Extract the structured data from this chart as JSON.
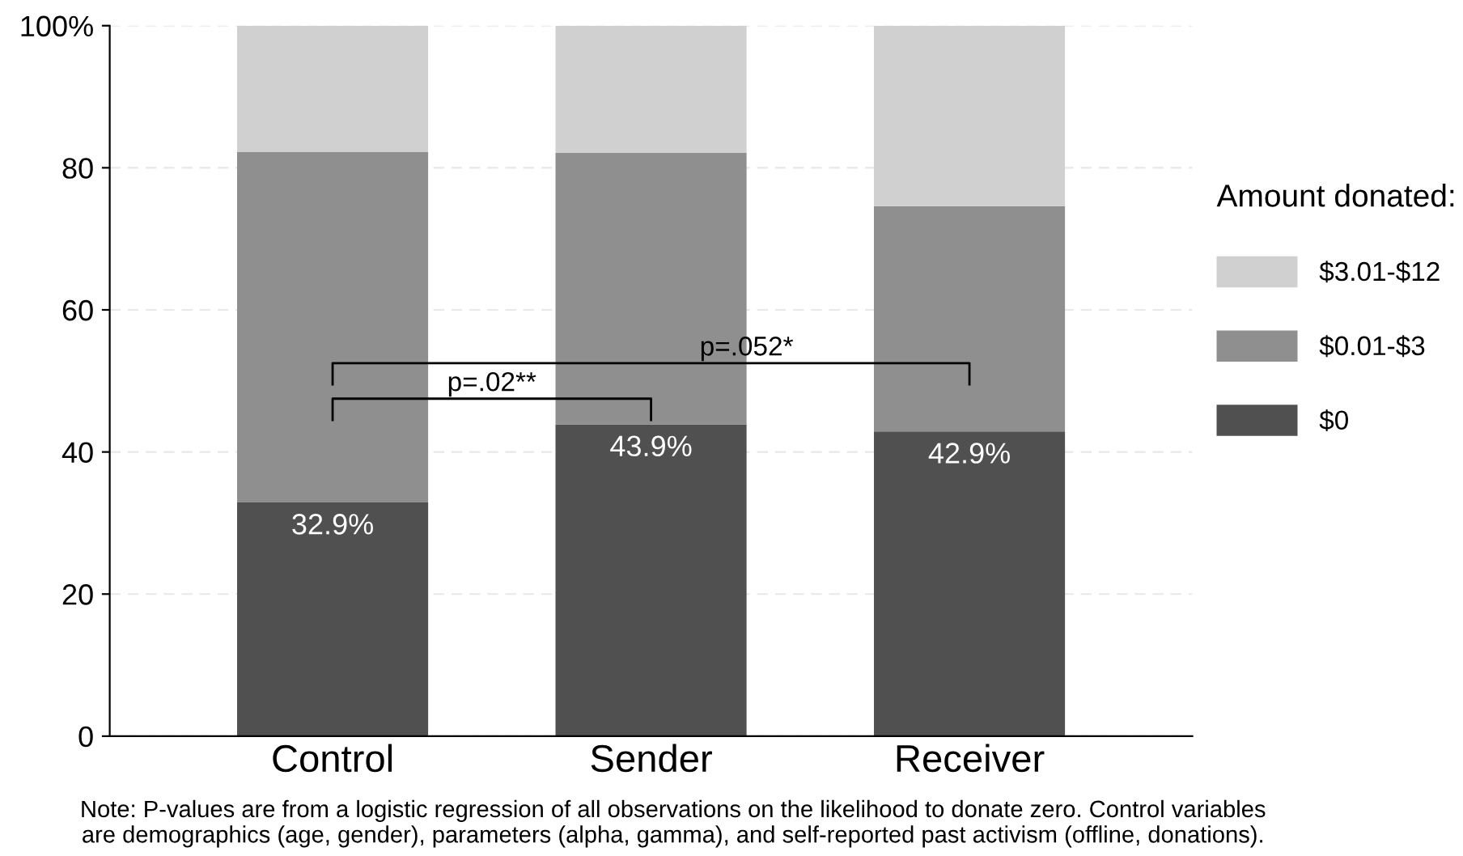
{
  "chart_data": {
    "type": "bar",
    "stacked": true,
    "categories": [
      "Control",
      "Sender",
      "Receiver"
    ],
    "series": [
      {
        "name": "$0",
        "color": "#505050",
        "values": [
          32.9,
          43.9,
          42.9
        ],
        "value_labels": [
          "32.9%",
          "43.9%",
          "42.9%"
        ]
      },
      {
        "name": "$0.01-$3",
        "color": "#8f8f8f",
        "values": [
          49.3,
          38.2,
          31.7
        ]
      },
      {
        "name": "$3.01-$12",
        "color": "#d0d0d0",
        "values": [
          17.8,
          17.9,
          25.4
        ]
      }
    ],
    "ylim": [
      0,
      100
    ],
    "yticks": [
      0,
      20,
      40,
      60,
      80,
      {
        "value": 100,
        "label": "100%"
      }
    ],
    "grid": "y",
    "legend": "right",
    "legend_title": "Amount donated:",
    "annotations": [
      "p=.02**",
      "p=.052*",
      "Note: P-values are from a logistic regression of all observations on the likelihood to donate zero. Control variables\nare demographics (age, gender), parameters (alpha, gamma), and self-reported past activism (offline, donations)."
    ]
  }
}
